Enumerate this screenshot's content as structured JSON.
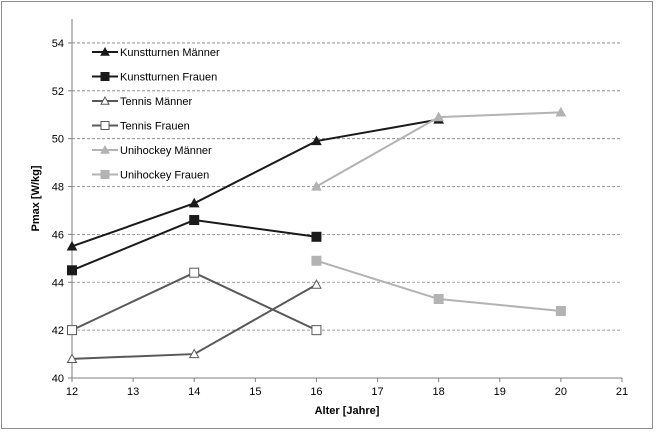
{
  "chart_data": {
    "type": "line",
    "title": "",
    "xlabel": "Alter [Jahre]",
    "ylabel": "Pmax  [W/kg]",
    "xlim": [
      12,
      21
    ],
    "ylim": [
      40,
      55
    ],
    "x_ticks": [
      "12",
      "13",
      "14",
      "15",
      "16",
      "17",
      "18",
      "19",
      "20",
      "21"
    ],
    "y_ticks": [
      "40",
      "42",
      "44",
      "46",
      "48",
      "50",
      "52",
      "54"
    ],
    "grid": "horizontal dashed",
    "legend_position": "top-left",
    "series": [
      {
        "name": "Kunstturnen Männer",
        "marker": "triangle-filled",
        "color": "#1a1a1a",
        "points": [
          {
            "x": 12,
            "y": 45.5
          },
          {
            "x": 14,
            "y": 47.3
          },
          {
            "x": 16,
            "y": 49.9
          },
          {
            "x": 18,
            "y": 50.8
          }
        ]
      },
      {
        "name": "Kunstturnen Frauen",
        "marker": "square-filled",
        "color": "#1a1a1a",
        "points": [
          {
            "x": 12,
            "y": 44.5
          },
          {
            "x": 14,
            "y": 46.6
          },
          {
            "x": 16,
            "y": 45.9
          }
        ]
      },
      {
        "name": "Tennis Männer",
        "marker": "triangle-open",
        "color": "#595959",
        "points": [
          {
            "x": 12,
            "y": 40.8
          },
          {
            "x": 14,
            "y": 41.0
          },
          {
            "x": 16,
            "y": 43.9
          }
        ]
      },
      {
        "name": "Tennis Frauen",
        "marker": "square-open",
        "color": "#595959",
        "points": [
          {
            "x": 12,
            "y": 42.0
          },
          {
            "x": 14,
            "y": 44.4
          },
          {
            "x": 16,
            "y": 42.0
          }
        ]
      },
      {
        "name": "Unihockey Männer",
        "marker": "triangle-filled",
        "color": "#b3b3b3",
        "points": [
          {
            "x": 16,
            "y": 48.0
          },
          {
            "x": 18,
            "y": 50.9
          },
          {
            "x": 20,
            "y": 51.1
          }
        ]
      },
      {
        "name": "Unihockey Frauen",
        "marker": "square-filled",
        "color": "#b3b3b3",
        "points": [
          {
            "x": 16,
            "y": 44.9
          },
          {
            "x": 18,
            "y": 43.3
          },
          {
            "x": 20,
            "y": 42.8
          }
        ]
      }
    ]
  }
}
